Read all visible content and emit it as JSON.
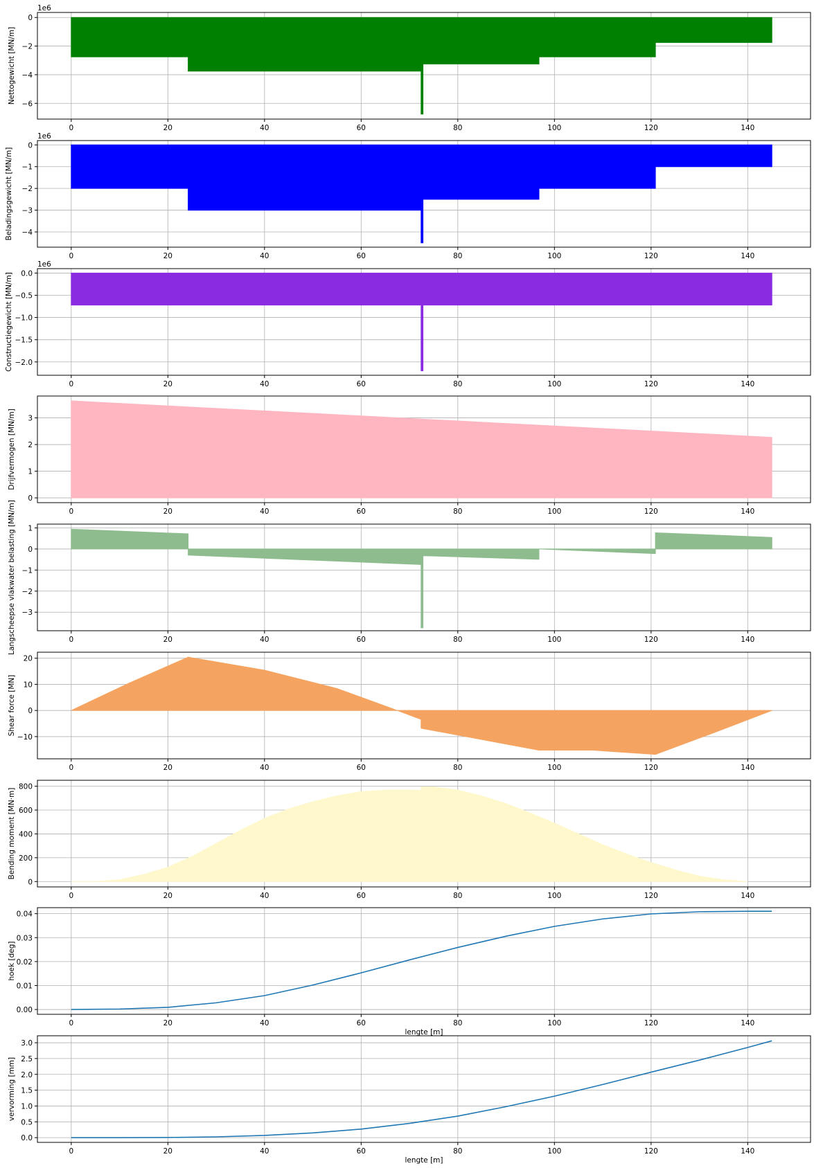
{
  "figure": {
    "background": "#ffffff",
    "grid_color": "#b0b0b0",
    "axis_color": "#000000"
  },
  "chart_data": [
    {
      "id": "nettogewicht",
      "type": "area",
      "ylabel": "Nettogewicht [MN/m]",
      "xlabel": "",
      "offset_text": "1e6",
      "color": "#008000",
      "xlim": [
        -7,
        153
      ],
      "ylim": [
        -7.1,
        0.35
      ],
      "x_ticks": [
        0,
        20,
        40,
        60,
        80,
        100,
        120,
        140
      ],
      "y_ticks": [
        0,
        -2,
        -4,
        -6
      ],
      "y_tick_labels": [
        "0",
        "−2",
        "−4",
        "−6"
      ],
      "grid": true,
      "x": [
        0,
        24.2,
        24.2,
        72.4,
        72.4,
        72.8,
        72.8,
        96.8,
        96.8,
        120.9,
        120.9,
        145
      ],
      "y": [
        -2.75,
        -2.75,
        -3.75,
        -3.75,
        -6.75,
        -6.75,
        -3.25,
        -3.25,
        -2.75,
        -2.75,
        -1.75,
        -1.75
      ]
    },
    {
      "id": "beladingsgewicht",
      "type": "area",
      "ylabel": "Beladingsgewicht [MN/m]",
      "xlabel": "",
      "offset_text": "1e6",
      "color": "#0000ff",
      "xlim": [
        -7,
        153
      ],
      "ylim": [
        -4.7,
        0.2
      ],
      "x_ticks": [
        0,
        20,
        40,
        60,
        80,
        100,
        120,
        140
      ],
      "y_ticks": [
        0,
        -1,
        -2,
        -3,
        -4
      ],
      "y_tick_labels": [
        "0",
        "−1",
        "−2",
        "−3",
        "−4"
      ],
      "grid": true,
      "x": [
        0,
        24.2,
        24.2,
        72.4,
        72.4,
        72.8,
        72.8,
        96.8,
        96.8,
        120.9,
        120.9,
        145
      ],
      "y": [
        -2.0,
        -2.0,
        -3.0,
        -3.0,
        -4.5,
        -4.5,
        -2.5,
        -2.5,
        -2.0,
        -2.0,
        -1.0,
        -1.0
      ]
    },
    {
      "id": "constructiegewicht",
      "type": "area",
      "ylabel": "Constructiegewicht [MN/m]",
      "xlabel": "",
      "offset_text": "1e6",
      "color": "#8a2be2",
      "xlim": [
        -7,
        153
      ],
      "ylim": [
        -2.3,
        0.1
      ],
      "x_ticks": [
        0,
        20,
        40,
        60,
        80,
        100,
        120,
        140
      ],
      "y_ticks": [
        0.0,
        -0.5,
        -1.0,
        -1.5,
        -2.0
      ],
      "y_tick_labels": [
        "0.0",
        "−0.5",
        "−1.0",
        "−1.5",
        "−2.0"
      ],
      "grid": true,
      "x": [
        0,
        72.4,
        72.4,
        72.8,
        72.8,
        145
      ],
      "y": [
        -0.72,
        -0.72,
        -2.2,
        -2.2,
        -0.72,
        -0.72
      ]
    },
    {
      "id": "drijfvermogen",
      "type": "area",
      "ylabel": "Drijfvermogen [MN/m]",
      "xlabel": "",
      "offset_text": "",
      "color": "#ffb6c1",
      "xlim": [
        -7,
        153
      ],
      "ylim": [
        -0.18,
        3.82
      ],
      "x_ticks": [
        0,
        20,
        40,
        60,
        80,
        100,
        120,
        140
      ],
      "y_ticks": [
        0,
        1,
        2,
        3
      ],
      "y_tick_labels": [
        "0",
        "1",
        "2",
        "3"
      ],
      "grid": true,
      "x": [
        0,
        145
      ],
      "y": [
        3.64,
        2.27
      ]
    },
    {
      "id": "vlakwater",
      "type": "area",
      "ylabel": "Langscheepse vlakwater belasting [MN/m]",
      "xlabel": "",
      "offset_text": "",
      "color": "#8fbc8f",
      "xlim": [
        -7,
        153
      ],
      "ylim": [
        -3.88,
        1.18
      ],
      "x_ticks": [
        0,
        20,
        40,
        60,
        80,
        100,
        120,
        140
      ],
      "y_ticks": [
        1,
        0,
        -1,
        -2,
        -3
      ],
      "y_tick_labels": [
        "1",
        "0",
        "−1",
        "−2",
        "−3"
      ],
      "grid": true,
      "x": [
        0,
        24.2,
        24.2,
        72.4,
        72.4,
        72.8,
        72.8,
        96.8,
        96.8,
        120.9,
        120.9,
        145
      ],
      "y": [
        0.94,
        0.72,
        -0.29,
        -0.74,
        -3.74,
        -3.74,
        -0.32,
        -0.49,
        0.0,
        -0.22,
        0.77,
        0.55
      ]
    },
    {
      "id": "shear",
      "type": "area",
      "ylabel": "Shear force [MN]",
      "xlabel": "",
      "offset_text": "",
      "color": "#f4a460",
      "xlim": [
        -7,
        153
      ],
      "ylim": [
        -18.5,
        22.3
      ],
      "x_ticks": [
        0,
        20,
        40,
        60,
        80,
        100,
        120,
        140
      ],
      "y_ticks": [
        20,
        10,
        0,
        -10
      ],
      "y_tick_labels": [
        "20",
        "10",
        "0",
        "−10"
      ],
      "grid": true,
      "x": [
        0,
        12,
        24.2,
        40,
        55,
        67.5,
        72.4,
        72.4,
        84,
        96.8,
        108,
        120.9,
        133,
        145
      ],
      "y": [
        0,
        10.5,
        20.4,
        15.4,
        8.4,
        0.0,
        -3.4,
        -6.8,
        -10.8,
        -15.2,
        -15.2,
        -16.8,
        -8.5,
        0
      ]
    },
    {
      "id": "moment",
      "type": "area",
      "ylabel": "Bending moment [MN·m]",
      "xlabel": "",
      "offset_text": "",
      "color": "#fff8cc",
      "xlim": [
        -7,
        153
      ],
      "ylim": [
        -45,
        850
      ],
      "x_ticks": [
        0,
        20,
        40,
        60,
        80,
        100,
        120,
        140
      ],
      "y_ticks": [
        0,
        200,
        400,
        600,
        800
      ],
      "y_tick_labels": [
        "0",
        "200",
        "400",
        "600",
        "800"
      ],
      "grid": true,
      "x": [
        0,
        5,
        10,
        15,
        20,
        25,
        30,
        35,
        40,
        45,
        50,
        55,
        60,
        65,
        70,
        72.4,
        72.4,
        75,
        80,
        85,
        90,
        95,
        100,
        105,
        110,
        115,
        120,
        125,
        130,
        135,
        140
      ],
      "y": [
        0,
        0,
        15,
        60,
        120,
        210,
        320,
        430,
        530,
        610,
        670,
        720,
        755,
        768,
        768,
        765,
        795,
        795,
        768,
        718,
        655,
        575,
        490,
        400,
        310,
        230,
        160,
        98,
        45,
        15,
        0
      ]
    },
    {
      "id": "hoek",
      "type": "line",
      "ylabel": "hoek [deg]",
      "xlabel": "lengte [m]",
      "offset_text": "",
      "color": "#1f77b4",
      "xlim": [
        -7,
        153
      ],
      "ylim": [
        -0.002,
        0.0425
      ],
      "x_ticks": [
        0,
        20,
        40,
        60,
        80,
        100,
        120,
        140
      ],
      "y_ticks": [
        0.0,
        0.01,
        0.02,
        0.03,
        0.04
      ],
      "y_tick_labels": [
        "0.00",
        "0.01",
        "0.02",
        "0.03",
        "0.04"
      ],
      "grid": true,
      "x": [
        0,
        10,
        20,
        30,
        40,
        50,
        60,
        70,
        80,
        90,
        100,
        110,
        120,
        130,
        140,
        145
      ],
      "y": [
        0.0,
        0.0002,
        0.0009,
        0.0028,
        0.0058,
        0.0102,
        0.0153,
        0.0207,
        0.0259,
        0.0306,
        0.0347,
        0.0378,
        0.0399,
        0.0408,
        0.041,
        0.041
      ]
    },
    {
      "id": "vervorming",
      "type": "line",
      "ylabel": "vervorming [mm]",
      "xlabel": "lengte [m]",
      "offset_text": "",
      "color": "#1f77b4",
      "xlim": [
        -7,
        153
      ],
      "ylim": [
        -0.15,
        3.22
      ],
      "x_ticks": [
        0,
        20,
        40,
        60,
        80,
        100,
        120,
        140
      ],
      "y_ticks": [
        0.0,
        0.5,
        1.0,
        1.5,
        2.0,
        2.5,
        3.0
      ],
      "y_tick_labels": [
        "0.0",
        "0.5",
        "1.0",
        "1.5",
        "2.0",
        "2.5",
        "3.0"
      ],
      "grid": true,
      "x": [
        0,
        10,
        20,
        30,
        40,
        50,
        60,
        70,
        80,
        90,
        100,
        110,
        120,
        130,
        140,
        145
      ],
      "y": [
        0.0,
        0.0,
        0.005,
        0.025,
        0.07,
        0.15,
        0.27,
        0.45,
        0.68,
        0.98,
        1.31,
        1.68,
        2.07,
        2.45,
        2.85,
        3.06
      ]
    }
  ]
}
